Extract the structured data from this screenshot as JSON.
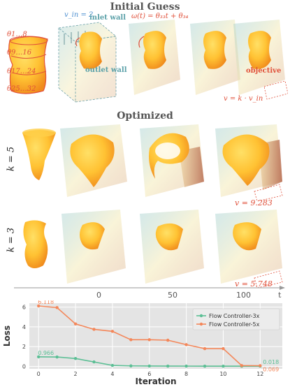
{
  "initial": {
    "title": "Initial Guess",
    "v_in": "v_in = 2",
    "inlet_wall": "inlet wall",
    "outlet_wall": "outlet wall",
    "omega_formula": "ω(t) = θ₃₃t + θ₃₄",
    "objective": "objective",
    "v_formula": "v = k · v_in",
    "theta_labels": [
      "θ1…8",
      "θ9…16",
      "θ17…24",
      "θ25…32"
    ]
  },
  "optimized": {
    "title": "Optimized",
    "rows": [
      {
        "label": "k = 5",
        "v_final": "v = 9.283"
      },
      {
        "label": "k = 3",
        "v_final": "v = 5.748"
      }
    ],
    "time_axis": {
      "ticks": [
        "0",
        "50",
        "100"
      ],
      "label": "t"
    }
  },
  "colors": {
    "shape": "#f7a12a",
    "shape_light": "#ffd24a",
    "label_red": "#e0503a",
    "series_3x": "#5cbf95",
    "series_5x": "#f4875a"
  },
  "chart_data": {
    "type": "line",
    "xlabel": "Iteration",
    "ylabel": "Loss",
    "xlim": [
      -0.5,
      13.2
    ],
    "ylim": [
      -0.25,
      6.4
    ],
    "xticks": [
      0,
      2,
      4,
      6,
      8,
      10,
      12
    ],
    "yticks": [
      0,
      2,
      4,
      6
    ],
    "grid": true,
    "legend_position": "top-right",
    "series": [
      {
        "name": "Flow Controller-3x",
        "color": "#5cbf95",
        "x": [
          0,
          1,
          2,
          3,
          4,
          5,
          6,
          7,
          8,
          9,
          10,
          11,
          12
        ],
        "y": [
          0.966,
          0.95,
          0.8,
          0.45,
          0.1,
          0.05,
          0.04,
          0.03,
          0.025,
          0.022,
          0.02,
          0.019,
          0.018
        ],
        "start_label": "0.966",
        "end_label": "0.018"
      },
      {
        "name": "Flow Controller-5x",
        "color": "#f4875a",
        "x": [
          0,
          1,
          2,
          3,
          4,
          5,
          6,
          7,
          8,
          9,
          10,
          11,
          12
        ],
        "y": [
          6.118,
          5.95,
          4.3,
          3.75,
          3.55,
          2.7,
          2.7,
          2.65,
          2.2,
          1.8,
          1.8,
          0.08,
          0.069
        ],
        "start_label": "6.118",
        "end_label": "0.069"
      }
    ]
  }
}
